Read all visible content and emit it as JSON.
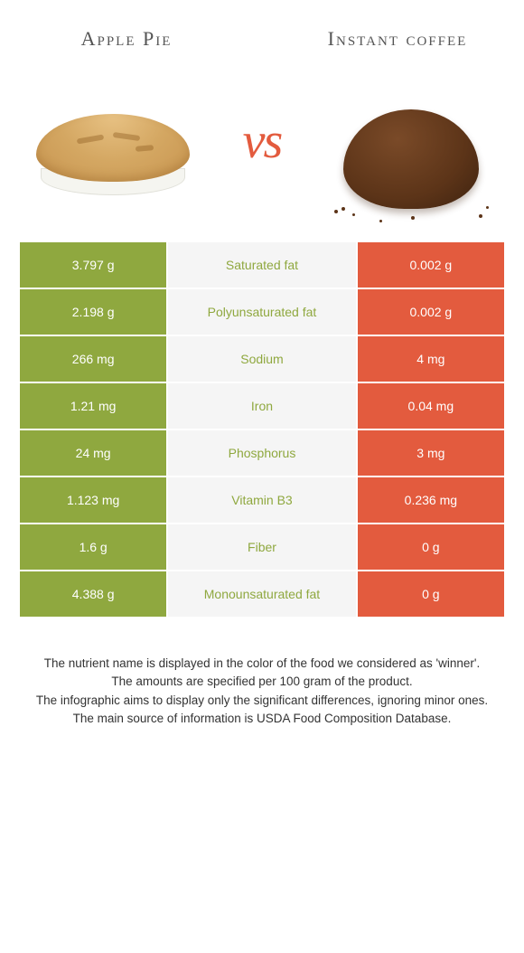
{
  "colors": {
    "left": "#8fa83f",
    "right": "#e35b3e",
    "mid_bg": "#f5f5f5",
    "nutrient_left_win": "#8fa83f",
    "nutrient_right_win": "#e35b3e",
    "row_border": "#ffffff",
    "vs": "#e35b3e"
  },
  "titles": {
    "left": "Apple Pie",
    "right": "Instant coffee",
    "vs": "vs"
  },
  "rows": [
    {
      "left": "3.797 g",
      "name": "Saturated fat",
      "right": "0.002 g",
      "winner": "left"
    },
    {
      "left": "2.198 g",
      "name": "Polyunsaturated fat",
      "right": "0.002 g",
      "winner": "left"
    },
    {
      "left": "266 mg",
      "name": "Sodium",
      "right": "4 mg",
      "winner": "left"
    },
    {
      "left": "1.21 mg",
      "name": "Iron",
      "right": "0.04 mg",
      "winner": "left"
    },
    {
      "left": "24 mg",
      "name": "Phosphorus",
      "right": "3 mg",
      "winner": "left"
    },
    {
      "left": "1.123 mg",
      "name": "Vitamin B3",
      "right": "0.236 mg",
      "winner": "left"
    },
    {
      "left": "1.6 g",
      "name": "Fiber",
      "right": "0 g",
      "winner": "left"
    },
    {
      "left": "4.388 g",
      "name": "Monounsaturated fat",
      "right": "0 g",
      "winner": "left"
    }
  ],
  "footer": [
    "The nutrient name is displayed in the color of the food we considered as 'winner'.",
    "The amounts are specified per 100 gram of the product.",
    "The infographic aims to display only the significant differences, ignoring minor ones.",
    "The main source of information is USDA Food Composition Database."
  ]
}
